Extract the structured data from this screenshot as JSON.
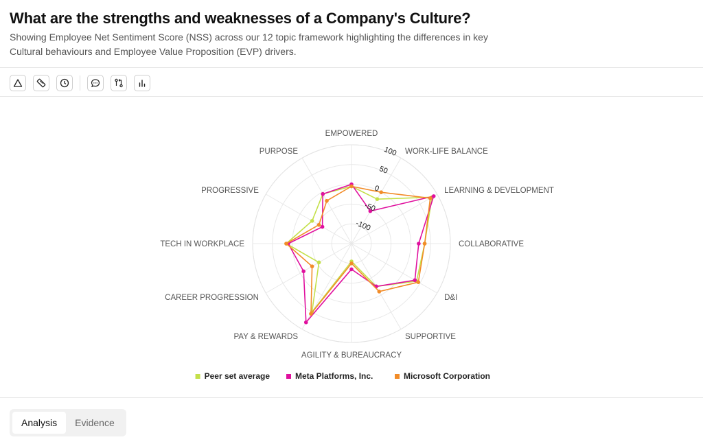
{
  "header": {
    "title": "What are the strengths and weaknesses of a Company's Culture?",
    "subtitle": "Showing Employee Net Sentiment Score (NSS) across our 12 topic framework highlighting the differences in key Cultural behaviours and Employee Value Proposition (EVP) drivers."
  },
  "toolbar": {
    "icons": [
      "triangle-icon",
      "ruler-icon",
      "clock-icon",
      "comment-icon",
      "compare-icon",
      "bar-chart-icon"
    ]
  },
  "tabs": [
    {
      "label": "Analysis",
      "active": true
    },
    {
      "label": "Evidence",
      "active": false
    }
  ],
  "chart_data": {
    "type": "radar",
    "title": "",
    "categories": [
      "EMPOWERED",
      "WORK-LIFE BALANCE",
      "LEARNING & DEVELOPMENT",
      "COLLABORATIVE",
      "D&I",
      "SUPPORTIVE",
      "AGILITY & BUREAUCRACY",
      "PAY & REWARDS",
      "CAREER PROGRESSION",
      "TECH IN WORKPLACE",
      "PROGRESSIVE",
      "PURPOSE"
    ],
    "radial_ticks": [
      100,
      50,
      0,
      -50,
      -100
    ],
    "rlim": [
      -150,
      100
    ],
    "grid": true,
    "legend_position": "bottom-center",
    "series": [
      {
        "name": "Peer set average",
        "color": "#c4e04a",
        "values": [
          -5,
          -20,
          85,
          35,
          40,
          -25,
          -105,
          50,
          -55,
          15,
          -35,
          -5
        ]
      },
      {
        "name": "Meta Platforms, Inc.",
        "color": "#e0109e",
        "values": [
          0,
          -55,
          90,
          20,
          35,
          -25,
          -85,
          80,
          -10,
          10,
          -65,
          -5
        ]
      },
      {
        "name": "Microsoft Corporation",
        "color": "#f28c28",
        "values": [
          -5,
          0,
          80,
          35,
          45,
          -10,
          -100,
          55,
          -35,
          15,
          -55,
          -25
        ]
      }
    ]
  }
}
